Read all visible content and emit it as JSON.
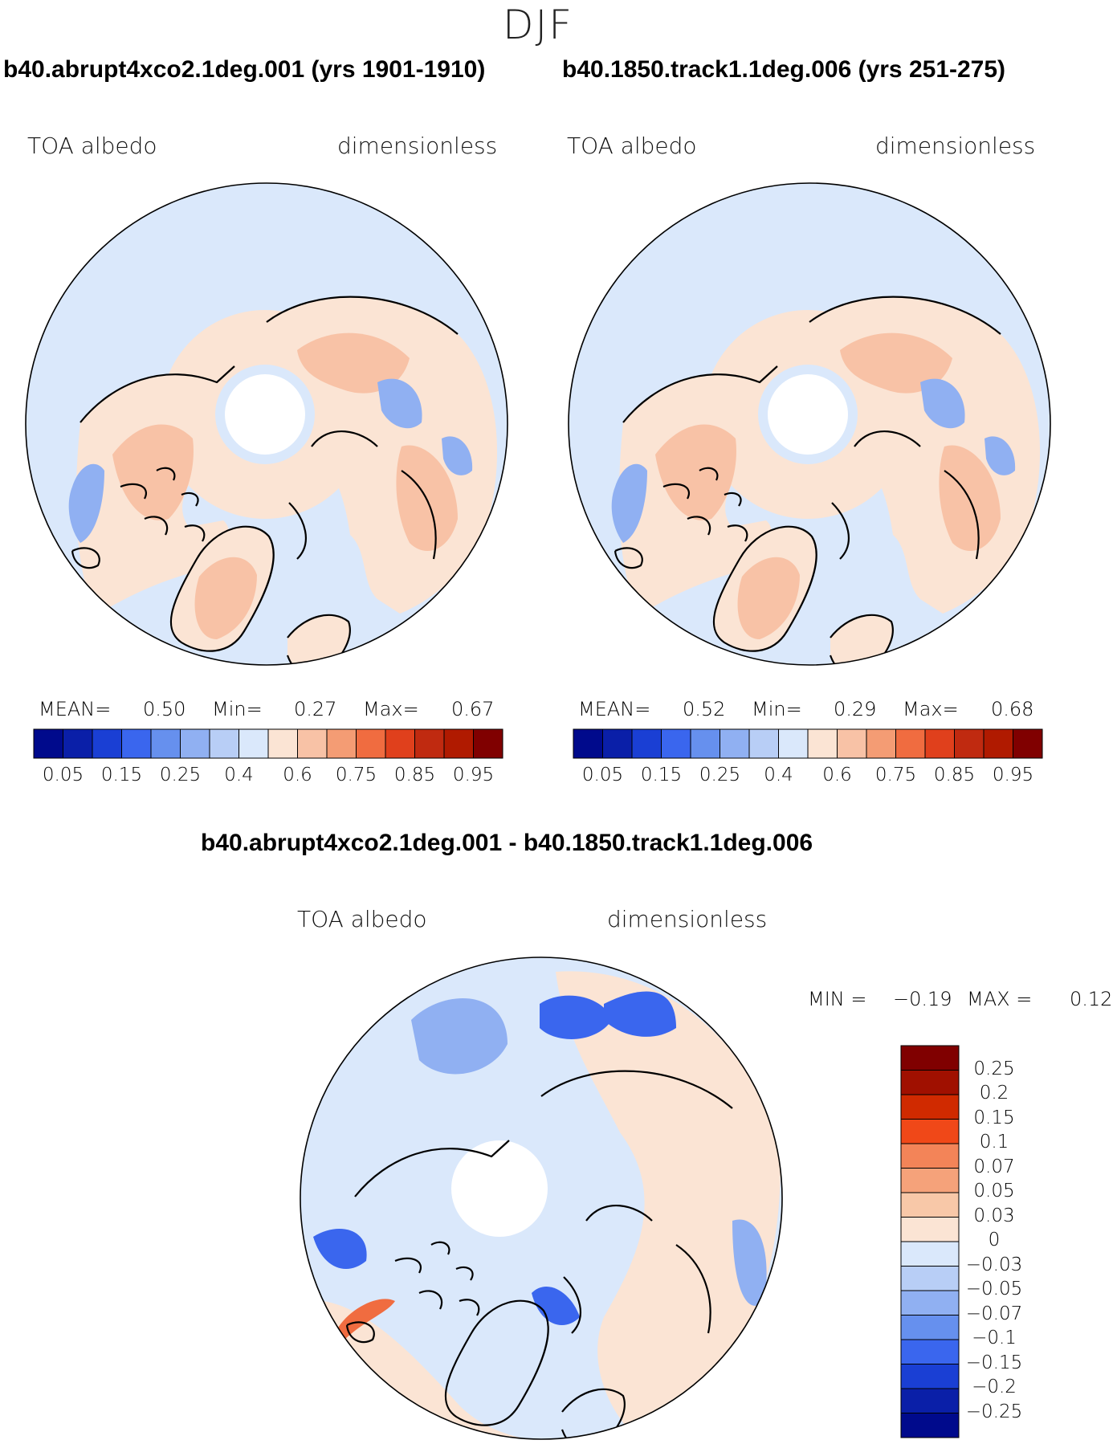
{
  "figure_title": "DJF",
  "panels": [
    {
      "case": "b40.abrupt4xco2.1deg.001 (yrs 1901-1910)",
      "field": "TOA albedo",
      "units": "dimensionless",
      "stats": {
        "mean_label": "MEAN=",
        "mean": "0.50",
        "min_label": "Min=",
        "min": "0.27",
        "max_label": "Max=",
        "max": "0.67"
      }
    },
    {
      "case": "b40.1850.track1.1deg.006 (yrs 251-275)",
      "field": "TOA albedo",
      "units": "dimensionless",
      "stats": {
        "mean_label": "MEAN=",
        "mean": "0.52",
        "min_label": "Min=",
        "min": "0.29",
        "max_label": "Max=",
        "max": "0.68"
      }
    }
  ],
  "difference": {
    "title": "b40.abrupt4xco2.1deg.001 - b40.1850.track1.1deg.006",
    "field": "TOA albedo",
    "units": "dimensionless",
    "stats": {
      "min_label": "MIN =",
      "min": "−0.19",
      "max_label": "MAX =",
      "max": "0.12"
    }
  },
  "abs_colorbar": {
    "colors": [
      "#000a8c",
      "#0a1fa8",
      "#1a3fd4",
      "#3a66ee",
      "#6690ee",
      "#90b0f2",
      "#b8cef6",
      "#dae8fb",
      "#fbe4d4",
      "#f8c2a6",
      "#f49c74",
      "#f06c40",
      "#e0401c",
      "#c02a10",
      "#b01a00",
      "#800000"
    ],
    "labels": [
      "0.05",
      "0.15",
      "0.25",
      "0.4",
      "0.6",
      "0.75",
      "0.85",
      "0.95"
    ]
  },
  "diff_colorbar": {
    "colors": [
      "#800000",
      "#a01000",
      "#d02a00",
      "#f04818",
      "#f38458",
      "#f5a27a",
      "#f8c8a8",
      "#fbe4d4",
      "#dae8fb",
      "#b8cef6",
      "#90b0f2",
      "#6690ee",
      "#3a66ee",
      "#1a3fd4",
      "#0a1fa8",
      "#000a8c"
    ],
    "labels": [
      "0.25",
      "0.2",
      "0.15",
      "0.1",
      "0.07",
      "0.05",
      "0.03",
      "0",
      "−0.03",
      "−0.05",
      "−0.07",
      "−0.1",
      "−0.15",
      "−0.2",
      "−0.25"
    ]
  },
  "map_colors": {
    "ocean": "#dae8fb",
    "land_low": "#fbe4d4",
    "land_high": "#f8c2a6",
    "cold": "#90b0f2",
    "deep": "#3a66ee",
    "warm": "#f06c40"
  }
}
